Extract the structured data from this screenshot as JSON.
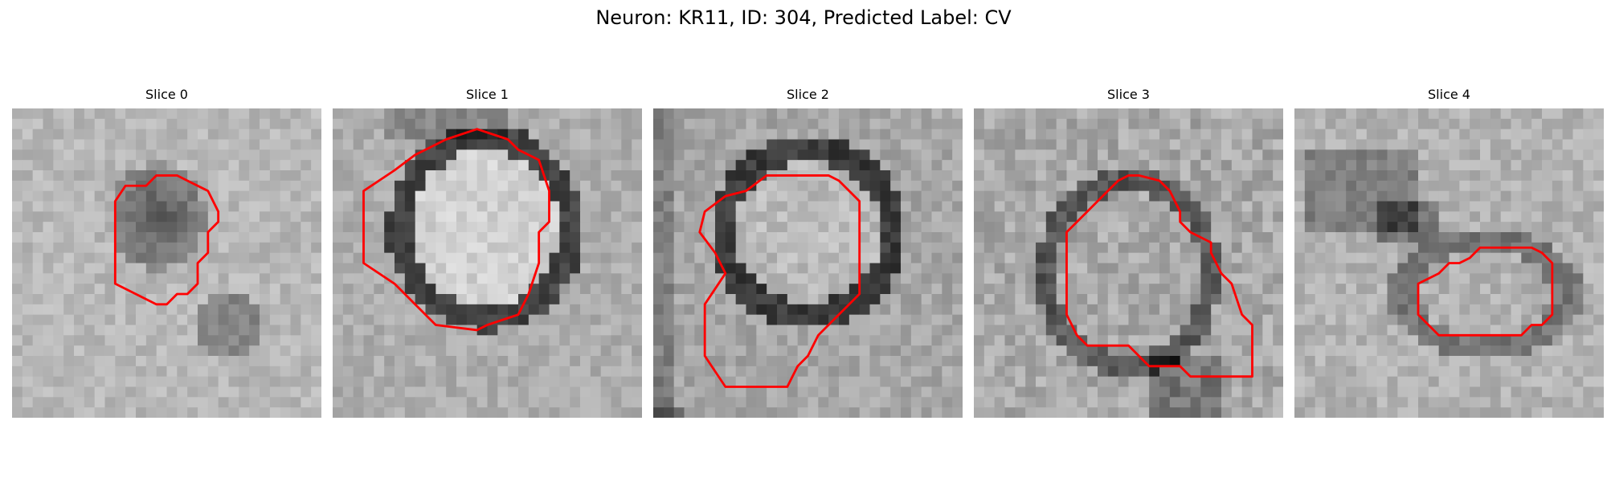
{
  "figure": {
    "title": "Neuron: KR11, ID: 304, Predicted Label: CV",
    "panels": [
      {
        "title": "Slice 0",
        "image": "grayscale-em-patch",
        "overlay": "segmentation-contour"
      },
      {
        "title": "Slice 1",
        "image": "grayscale-em-patch",
        "overlay": "segmentation-contour"
      },
      {
        "title": "Slice 2",
        "image": "grayscale-em-patch",
        "overlay": "segmentation-contour"
      },
      {
        "title": "Slice 3",
        "image": "grayscale-em-patch",
        "overlay": "segmentation-contour"
      },
      {
        "title": "Slice 4",
        "image": "grayscale-em-patch",
        "overlay": "segmentation-contour"
      }
    ],
    "colors": {
      "contour": "#ff0000",
      "background": "#ffffff",
      "text": "#000000"
    }
  }
}
